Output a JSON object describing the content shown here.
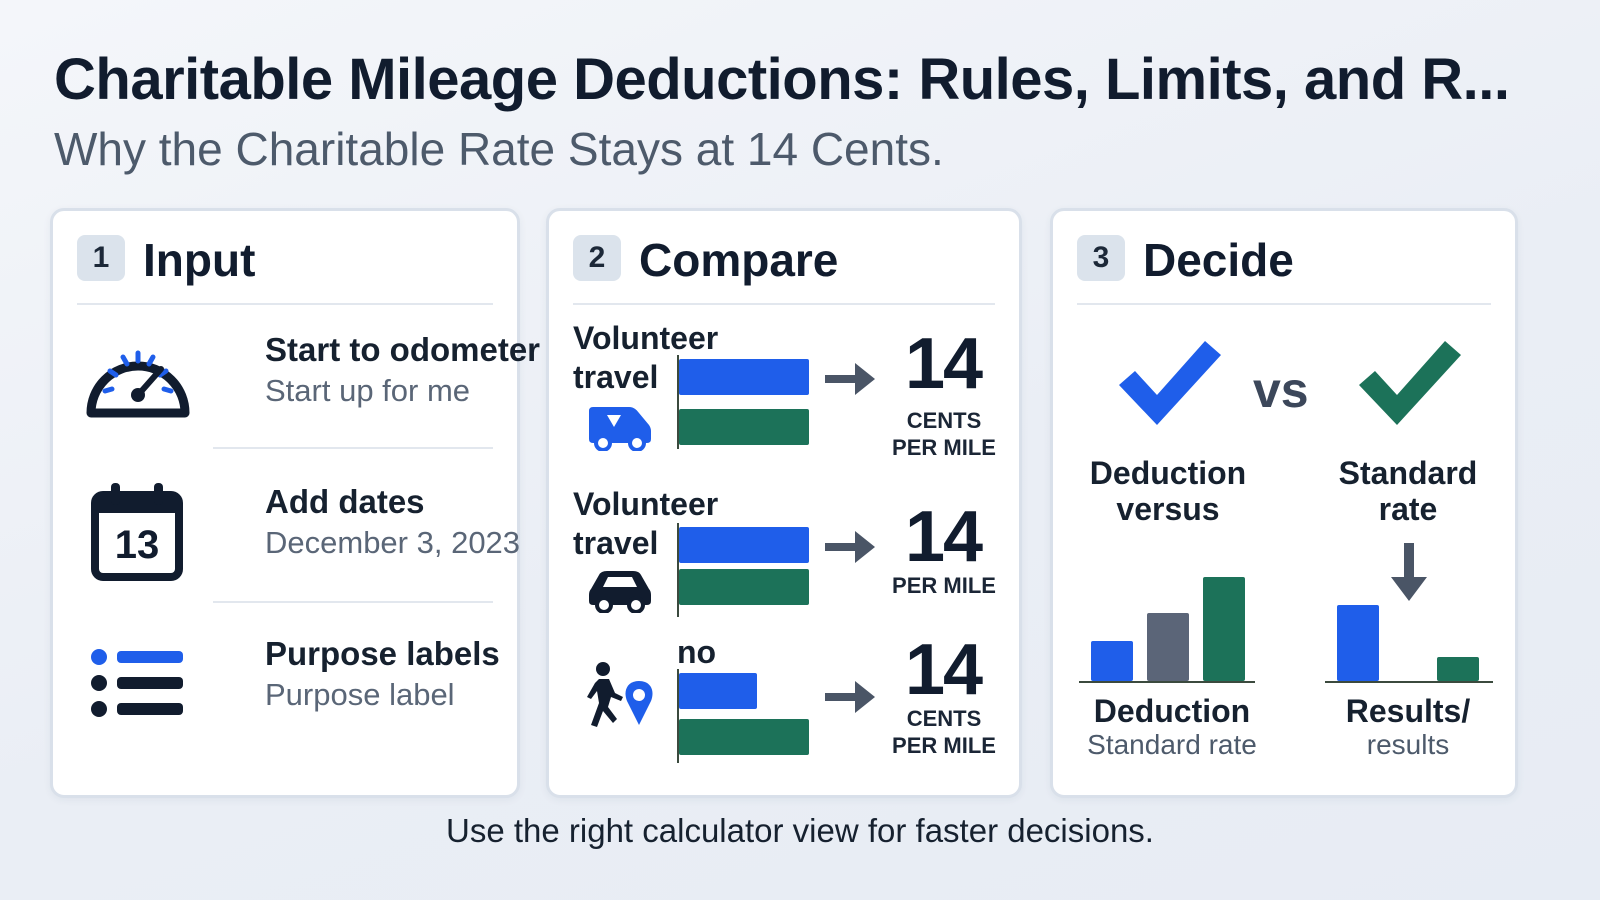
{
  "header": {
    "title": "Charitable Mileage Deductions: Rules, Limits, and R...",
    "subtitle": "Why the Charitable Rate Stays at 14 Cents."
  },
  "steps": [
    {
      "number": "1",
      "label": "Input"
    },
    {
      "number": "2",
      "label": "Compare"
    },
    {
      "number": "3",
      "label": "Decide"
    }
  ],
  "input": {
    "rows": [
      {
        "title": "Start to odometer",
        "subtitle": "Start up for me",
        "icon": "speedometer-icon"
      },
      {
        "title": "Add dates",
        "subtitle": "December 3, 2023",
        "icon": "calendar-icon",
        "calendar_day": "13"
      },
      {
        "title": "Purpose labels",
        "subtitle": "Purpose label",
        "icon": "list-icon"
      }
    ]
  },
  "compare": {
    "rows": [
      {
        "label_line1": "Volunteer",
        "label_line2": "travel",
        "icon": "van-icon",
        "value": "14",
        "unit_line1": "CENTS",
        "unit_line2": "PER MILE"
      },
      {
        "label_line1": "Volunteer",
        "label_line2": "travel",
        "icon": "car-icon",
        "value": "14",
        "unit_line1": "",
        "unit_line2": "PER MILE"
      },
      {
        "label_line1": "no",
        "label_line2": "",
        "icon": "walker-pin-icon",
        "value": "14",
        "unit_line1": "CENTS",
        "unit_line2": "PER MILE"
      }
    ]
  },
  "decide": {
    "left_label_line1": "Deduction",
    "left_label_line2": "versus",
    "vs": "vs",
    "right_label_line1": "Standard",
    "right_label_line2": "rate",
    "left_chart_title": "Deduction",
    "left_chart_sub": "Standard rate",
    "right_chart_title": "Results/",
    "right_chart_sub": "results"
  },
  "colors": {
    "blue": "#1f5eea",
    "green": "#1c7259",
    "slate": "#5b6578",
    "dark": "#111c2e"
  },
  "footer": "Use the right calculator view for faster decisions."
}
